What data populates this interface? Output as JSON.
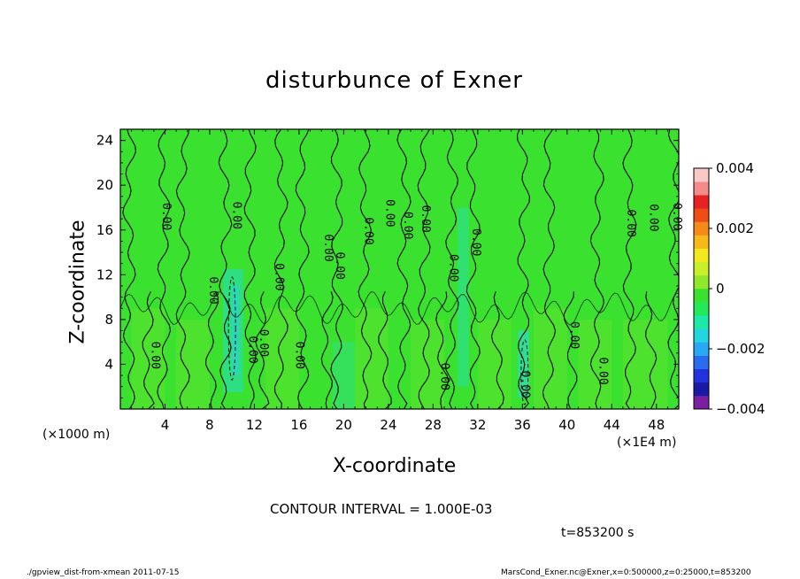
{
  "chart_data": {
    "type": "heatmap",
    "title": "disturbunce of Exner",
    "xlabel": "X-coordinate",
    "ylabel": "Z-coordinate",
    "x_unit_left": "(×1000 m)",
    "x_unit_right": "(×1E4 m)",
    "xlim": [
      0,
      50
    ],
    "ylim": [
      0,
      25
    ],
    "xticks": [
      4,
      8,
      12,
      16,
      20,
      24,
      28,
      32,
      36,
      40,
      44,
      48
    ],
    "yticks": [
      4,
      8,
      12,
      16,
      20,
      24
    ],
    "colorbar": {
      "range": [
        -0.004,
        0.004
      ],
      "tick_labels": [
        "0.004",
        "0.002",
        "0",
        "−0.002",
        "−0.004"
      ],
      "tick_values": [
        0.004,
        0.002,
        0,
        -0.002,
        -0.004
      ],
      "colors": [
        "#7a1fa2",
        "#1a1aa8",
        "#2233dd",
        "#2a6cf0",
        "#29a9f5",
        "#22d6e0",
        "#1de8a8",
        "#22e85a",
        "#3ae12e",
        "#8fe82a",
        "#c9ef2a",
        "#f2e81e",
        "#f7b81a",
        "#f58a18",
        "#f04d16",
        "#e82222",
        "#f58a8a",
        "#fbc8c8"
      ]
    },
    "contour_labels": [
      {
        "x": 3.1,
        "z": 4.8,
        "text": "0.00"
      },
      {
        "x": 4.1,
        "z": 17.2,
        "text": "0.00"
      },
      {
        "x": 8.3,
        "z": 10.6,
        "text": "0.00"
      },
      {
        "x": 10.4,
        "z": 17.3,
        "text": "0.00"
      },
      {
        "x": 11.8,
        "z": 5.3,
        "text": "0.00"
      },
      {
        "x": 12.8,
        "z": 5.9,
        "text": "0.00"
      },
      {
        "x": 14.2,
        "z": 11.8,
        "text": "0.00"
      },
      {
        "x": 16.0,
        "z": 4.8,
        "text": "0.00"
      },
      {
        "x": 18.6,
        "z": 14.4,
        "text": "0.00"
      },
      {
        "x": 19.6,
        "z": 12.8,
        "text": "0.00"
      },
      {
        "x": 22.2,
        "z": 15.9,
        "text": "0.00"
      },
      {
        "x": 24.1,
        "z": 17.5,
        "text": "0.00"
      },
      {
        "x": 25.7,
        "z": 16.4,
        "text": "0.00"
      },
      {
        "x": 27.3,
        "z": 17.0,
        "text": "0.00"
      },
      {
        "x": 29.0,
        "z": 2.9,
        "text": "0.00"
      },
      {
        "x": 29.8,
        "z": 12.6,
        "text": "0.00"
      },
      {
        "x": 31.8,
        "z": 14.9,
        "text": "0.00"
      },
      {
        "x": 36.2,
        "z": 2.2,
        "text": "0.00"
      },
      {
        "x": 40.6,
        "z": 6.6,
        "text": "0.00"
      },
      {
        "x": 43.2,
        "z": 3.4,
        "text": "0.00"
      },
      {
        "x": 45.7,
        "z": 16.6,
        "text": "0.00"
      },
      {
        "x": 47.7,
        "z": 17.1,
        "text": "0.00"
      },
      {
        "x": 49.8,
        "z": 17.2,
        "text": "0.00"
      }
    ]
  },
  "contour_interval": "CONTOUR INTERVAL = 1.000E-03",
  "time_stamp": "t=853200 s",
  "footer_left": "./gpview_dist-from-xmean  2011-07-15",
  "footer_right": "MarsCond_Exner.nc@Exner,x=0:500000,z=0:25000,t=853200"
}
